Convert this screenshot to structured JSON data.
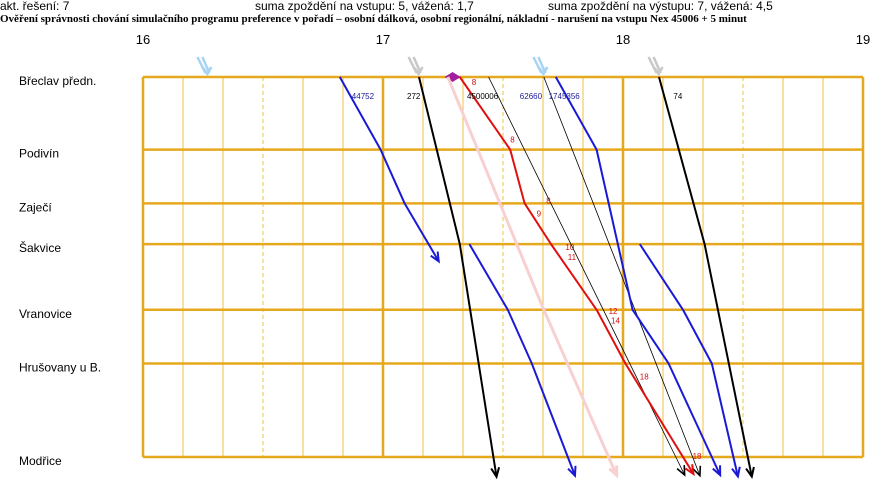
{
  "header": {
    "solution": "akt. řešení: 7",
    "input_delay": "suma zpoždění na vstupu: 5,  vážená: 1,7",
    "output_delay": "suma zpoždění na výstupu: 7,  vážená: 4,5"
  },
  "chart_data": {
    "type": "line",
    "title": "Ověření správnosti chování simulačního programu preference v pořadí – osobní dálková, osobní regionální, nákladní - narušení na vstupu Nex 45006 + 5 minut",
    "x_unit": "hour",
    "xlim": [
      16,
      19
    ],
    "x_ticks": [
      16,
      17,
      18,
      19
    ],
    "x_tick_labels": [
      "16",
      "17",
      "18",
      "19"
    ],
    "stations": [
      "Břeclav předn.",
      "Podivín",
      "Zaječí",
      "Šakvice",
      "Vranovice",
      "Hrušovany u B.",
      "Modřice"
    ],
    "station_km": [
      0,
      7.3,
      12.7,
      16.8,
      23.4,
      28.8,
      38.2
    ],
    "ylim": [
      0,
      38.2
    ],
    "grid": true,
    "colors": {
      "grid_major": "#e6a81c",
      "grid_minor": "#f0c040",
      "regional": "#1a1ad6",
      "long_distance": "#000000",
      "freight": "#000000",
      "disrupted": "#e01010",
      "ghost": "#f9d0d0",
      "input_arrow": "#a8d4f4",
      "input_arrow_gray": "#c8c8c8",
      "label_regional": "#1a1a9a",
      "label_black": "#000000",
      "delay_label": "#d01010"
    },
    "series": [
      {
        "id": "r1",
        "name": "44752",
        "kind": "regional",
        "points": [
          [
            16.82,
            0
          ],
          [
            16.99,
            7.3
          ],
          [
            17.09,
            12.7
          ],
          [
            17.19,
            16.8
          ]
        ]
      },
      {
        "id": "l1",
        "name": "272",
        "kind": "long_distance",
        "points": [
          [
            17.15,
            0
          ],
          [
            17.32,
            16.8
          ],
          [
            17.46,
            38.2
          ]
        ]
      },
      {
        "id": "g1",
        "name": "45006",
        "kind": "ghost",
        "points": [
          [
            17.27,
            0
          ],
          [
            17.67,
            23.4
          ],
          [
            17.94,
            38.2
          ]
        ]
      },
      {
        "id": "d1",
        "name": "45006",
        "kind": "disrupted",
        "points": [
          [
            17.32,
            0
          ],
          [
            17.53,
            7.3
          ],
          [
            17.59,
            12.7
          ],
          [
            17.7,
            16.8
          ],
          [
            17.89,
            23.4
          ],
          [
            18.01,
            28.8
          ],
          [
            18.25,
            38.2
          ]
        ]
      },
      {
        "id": "t1",
        "name": "",
        "kind": "freight",
        "points": [
          [
            17.44,
            0
          ],
          [
            18.22,
            38.2
          ]
        ]
      },
      {
        "id": "r2",
        "name": "62660",
        "kind": "regional",
        "points": [
          [
            17.36,
            16.8
          ],
          [
            17.52,
            23.4
          ],
          [
            17.62,
            28.8
          ],
          [
            17.77,
            38.2
          ]
        ]
      },
      {
        "id": "t2",
        "name": "1745356",
        "kind": "freight",
        "points": [
          [
            17.67,
            0
          ],
          [
            18.29,
            38.2
          ]
        ]
      },
      {
        "id": "r3",
        "name": "",
        "kind": "regional",
        "points": [
          [
            17.72,
            0
          ],
          [
            17.89,
            7.3
          ],
          [
            18.04,
            23.4
          ],
          [
            18.19,
            28.8
          ],
          [
            18.37,
            38.2
          ]
        ]
      },
      {
        "id": "l2",
        "name": "74",
        "kind": "long_distance",
        "points": [
          [
            18.15,
            0
          ],
          [
            18.34,
            16.8
          ],
          [
            18.52,
            38.2
          ]
        ]
      },
      {
        "id": "r4",
        "name": "",
        "kind": "regional",
        "points": [
          [
            18.07,
            16.8
          ],
          [
            18.25,
            23.4
          ],
          [
            18.37,
            28.8
          ],
          [
            18.46,
            38.2
          ]
        ]
      }
    ],
    "train_labels": [
      {
        "text": "44752",
        "x": 16.87,
        "y": 1.4,
        "kind": "regional"
      },
      {
        "text": "272",
        "x": 17.1,
        "y": 1.4,
        "kind": "long_distance"
      },
      {
        "text": "4500006",
        "x": 17.35,
        "y": 1.4,
        "kind": "long_distance"
      },
      {
        "text": "62660",
        "x": 17.57,
        "y": 1.4,
        "kind": "regional"
      },
      {
        "text": "1745356",
        "x": 17.69,
        "y": 1.4,
        "kind": "regional"
      },
      {
        "text": "74",
        "x": 18.21,
        "y": 1.4,
        "kind": "long_distance"
      }
    ],
    "delay_labels": [
      {
        "text": "8",
        "x": 17.37,
        "y": 0.0
      },
      {
        "text": "8",
        "x": 17.53,
        "y": 5.8
      },
      {
        "text": "8",
        "x": 17.68,
        "y": 11.9
      },
      {
        "text": "9",
        "x": 17.64,
        "y": 13.2
      },
      {
        "text": "10",
        "x": 17.76,
        "y": 16.6
      },
      {
        "text": "11",
        "x": 17.77,
        "y": 17.6
      },
      {
        "text": "12",
        "x": 17.94,
        "y": 23.0
      },
      {
        "text": "14",
        "x": 17.95,
        "y": 24.0
      },
      {
        "text": "18",
        "x": 18.07,
        "y": 29.6
      },
      {
        "text": "18",
        "x": 18.29,
        "y": 37.6
      }
    ],
    "input_arrows": [
      {
        "x": 16.26,
        "kind": "regional"
      },
      {
        "x": 17.14,
        "kind": "long_distance"
      },
      {
        "x": 17.29,
        "kind": "disrupted"
      },
      {
        "x": 17.66,
        "kind": "regional"
      },
      {
        "x": 18.14,
        "kind": "long_distance"
      }
    ]
  }
}
